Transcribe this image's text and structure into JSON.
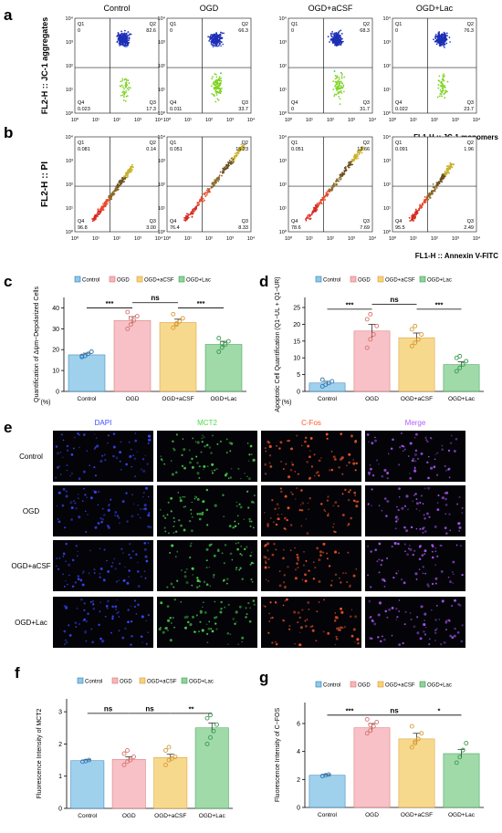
{
  "flow": {
    "conditions": [
      "Control",
      "OGD",
      "OGD+aCSF",
      "OGD+Lac"
    ],
    "tick_labels": [
      "10⁰",
      "10¹",
      "10²",
      "10³",
      "10⁴"
    ],
    "jc1": {
      "ylabel": "FL2-H :: JC-1 aggregates",
      "xlabel": "FL1-H :: JC-1 monomers",
      "panels": [
        {
          "q1": "0",
          "q2": "82.6",
          "q3": "17.3",
          "q4": "0.023"
        },
        {
          "q1": "0",
          "q2": "66.3",
          "q3": "33.7",
          "q4": "0.011"
        },
        {
          "q1": "0",
          "q2": "68.3",
          "q3": "31.7",
          "q4": "0"
        },
        {
          "q1": "0",
          "q2": "76.3",
          "q3": "23.7",
          "q4": "0.022"
        }
      ],
      "colors": [
        "#1d2fb5",
        "#3f5fe0",
        "#20c6d8",
        "#2ac94a",
        "#7ed321"
      ]
    },
    "annexin": {
      "ylabel": "FL2-H :: PI",
      "xlabel": "FL1-H :: Annexin V-FITC",
      "panels": [
        {
          "q1": "0.081",
          "q2": "0.14",
          "q3": "3.00",
          "q4": "96.8"
        },
        {
          "q1": "0.051",
          "q2": "15.23",
          "q3": "8.33",
          "q4": "76.4"
        },
        {
          "q1": "0.051",
          "q2": "13.66",
          "q3": "7.69",
          "q4": "78.6"
        },
        {
          "q1": "0.091",
          "q2": "1.96",
          "q3": "2.49",
          "q4": "95.5"
        }
      ],
      "colors": [
        "#d8281e",
        "#e84a2a",
        "#8a6a2a",
        "#6b4f1d",
        "#c9b22c"
      ]
    }
  },
  "panel_letters": {
    "a": "a",
    "b": "b",
    "c": "c",
    "d": "d",
    "e": "e",
    "f": "f",
    "g": "g"
  },
  "microscopy": {
    "columns": [
      "DAPI",
      "MCT2",
      "C-Fos",
      "Merge"
    ],
    "column_colors": [
      "#3d4cff",
      "#4fd84f",
      "#ff5a2a",
      "#b45cff"
    ],
    "rows": [
      "Control",
      "OGD",
      "OGD+aCSF",
      "OGD+Lac"
    ]
  },
  "chart_data": [
    {
      "id": "c",
      "type": "bar",
      "categories": [
        "Control",
        "OGD",
        "OGD+aCSF",
        "OGD+Lac"
      ],
      "values": [
        17.5,
        34,
        33,
        22.5
      ],
      "errors": [
        0.8,
        1.8,
        1.6,
        1.5
      ],
      "points": [
        [
          16.5,
          17.0,
          18.0,
          19.0,
          17.0
        ],
        [
          30.0,
          32.0,
          34.0,
          36.0,
          38.0,
          35.0
        ],
        [
          30.5,
          32.0,
          33.5,
          35.0,
          37.0,
          32.5
        ],
        [
          19.0,
          21.0,
          22.5,
          24.0,
          25.5,
          23.0
        ]
      ],
      "colors": [
        "#8ec9ea",
        "#f6b6bd",
        "#f6d27a",
        "#8fd39a"
      ],
      "point_colors": [
        "#2f78b5",
        "#d9736d",
        "#d99a33",
        "#3a9a4f"
      ],
      "legend": [
        "Control",
        "OGD",
        "OGD+aCSF",
        "OGD+Lac"
      ],
      "ylabel": "Quantification of Δψm−Depolarized Cells",
      "unit": "(%)",
      "ylim": [
        0,
        45
      ],
      "yticks": [
        0,
        10,
        20,
        30,
        40
      ],
      "sig": [
        {
          "from": 0,
          "to": 1,
          "label": "***",
          "level": 40
        },
        {
          "from": 1,
          "to": 2,
          "label": "ns",
          "level": 42.5
        },
        {
          "from": 2,
          "to": 3,
          "label": "***",
          "level": 40
        }
      ]
    },
    {
      "id": "d",
      "type": "bar",
      "categories": [
        "Control",
        "OGD",
        "OGD+aCSF",
        "OGD+Lac"
      ],
      "values": [
        2.5,
        18,
        16,
        8
      ],
      "errors": [
        0.5,
        2.0,
        1.4,
        0.8
      ],
      "points": [
        [
          1.5,
          2.0,
          2.5,
          3.0,
          3.5
        ],
        [
          13.0,
          15.5,
          17.0,
          19.5,
          21.5,
          23.0
        ],
        [
          13.5,
          14.5,
          15.5,
          17.0,
          18.5,
          19.5
        ],
        [
          6.0,
          7.0,
          8.0,
          9.0,
          10.0,
          10.5
        ]
      ],
      "colors": [
        "#8ec9ea",
        "#f6b6bd",
        "#f6d27a",
        "#8fd39a"
      ],
      "point_colors": [
        "#2f78b5",
        "#d9736d",
        "#d99a33",
        "#3a9a4f"
      ],
      "legend": [
        "Control",
        "OGD",
        "OGD+aCSF",
        "OGD+Lac"
      ],
      "ylabel": "Apoptotic Cell Quantification (Q1−UL + Q1−UR)",
      "unit": "(%)",
      "ylim": [
        0,
        28
      ],
      "yticks": [
        0,
        5,
        10,
        15,
        20,
        25
      ],
      "sig": [
        {
          "from": 0,
          "to": 1,
          "label": "***",
          "level": 24.5
        },
        {
          "from": 1,
          "to": 2,
          "label": "ns",
          "level": 26
        },
        {
          "from": 2,
          "to": 3,
          "label": "***",
          "level": 24.5
        }
      ]
    },
    {
      "id": "f",
      "type": "bar",
      "categories": [
        "Control",
        "OGD",
        "OGD+aCSF",
        "OGD+Lac"
      ],
      "values": [
        1.48,
        1.52,
        1.58,
        2.5
      ],
      "errors": [
        0.03,
        0.08,
        0.1,
        0.15
      ],
      "points": [
        [
          1.45,
          1.47,
          1.5
        ],
        [
          1.35,
          1.45,
          1.5,
          1.6,
          1.7,
          1.8
        ],
        [
          1.35,
          1.5,
          1.55,
          1.6,
          1.8,
          1.9
        ],
        [
          2.0,
          2.2,
          2.4,
          2.6,
          2.8,
          2.9
        ]
      ],
      "colors": [
        "#8ec9ea",
        "#f6b6bd",
        "#f6d27a",
        "#8fd39a"
      ],
      "point_colors": [
        "#2f78b5",
        "#d9736d",
        "#d99a33",
        "#3a9a4f"
      ],
      "legend": [
        "Control",
        "OGD",
        "OGD+aCSF",
        "OGD+Lac"
      ],
      "ylabel": "Fluorescence Intensity of MCT2",
      "unit": "",
      "ylim": [
        0,
        3.4
      ],
      "yticks": [
        0,
        1,
        2,
        3
      ],
      "sig": [
        {
          "from": 0,
          "to": 1,
          "label": "ns",
          "level": 2.95
        },
        {
          "from": 1,
          "to": 2,
          "label": "ns",
          "level": 2.95
        },
        {
          "from": 2,
          "to": 3,
          "label": "**",
          "level": 2.95
        }
      ]
    },
    {
      "id": "g",
      "type": "bar",
      "categories": [
        "Control",
        "OGD",
        "OGD+aCSF",
        "OGD+Lac"
      ],
      "values": [
        2.3,
        5.7,
        4.9,
        3.85
      ],
      "errors": [
        0.05,
        0.3,
        0.4,
        0.3
      ],
      "points": [
        [
          2.25,
          2.3,
          2.35
        ],
        [
          5.3,
          5.5,
          5.8,
          6.1,
          6.3,
          5.9
        ],
        [
          4.3,
          4.6,
          4.9,
          5.3,
          5.8,
          4.7
        ],
        [
          3.2,
          3.6,
          4.1,
          4.6
        ]
      ],
      "colors": [
        "#8ec9ea",
        "#f6b6bd",
        "#f6d27a",
        "#8fd39a"
      ],
      "point_colors": [
        "#2f78b5",
        "#d9736d",
        "#d99a33",
        "#3a9a4f"
      ],
      "legend": [
        "Control",
        "OGD",
        "OGD+aCSF",
        "OGD+Lac"
      ],
      "ylabel": "Fluorescence Intensity of C−FOS",
      "unit": "",
      "ylim": [
        0,
        7.5
      ],
      "yticks": [
        0,
        2,
        4,
        6
      ],
      "sig": [
        {
          "from": 0,
          "to": 1,
          "label": "***",
          "level": 6.6
        },
        {
          "from": 1,
          "to": 2,
          "label": "ns",
          "level": 6.6
        },
        {
          "from": 2,
          "to": 3,
          "label": "*",
          "level": 6.6
        }
      ]
    }
  ]
}
